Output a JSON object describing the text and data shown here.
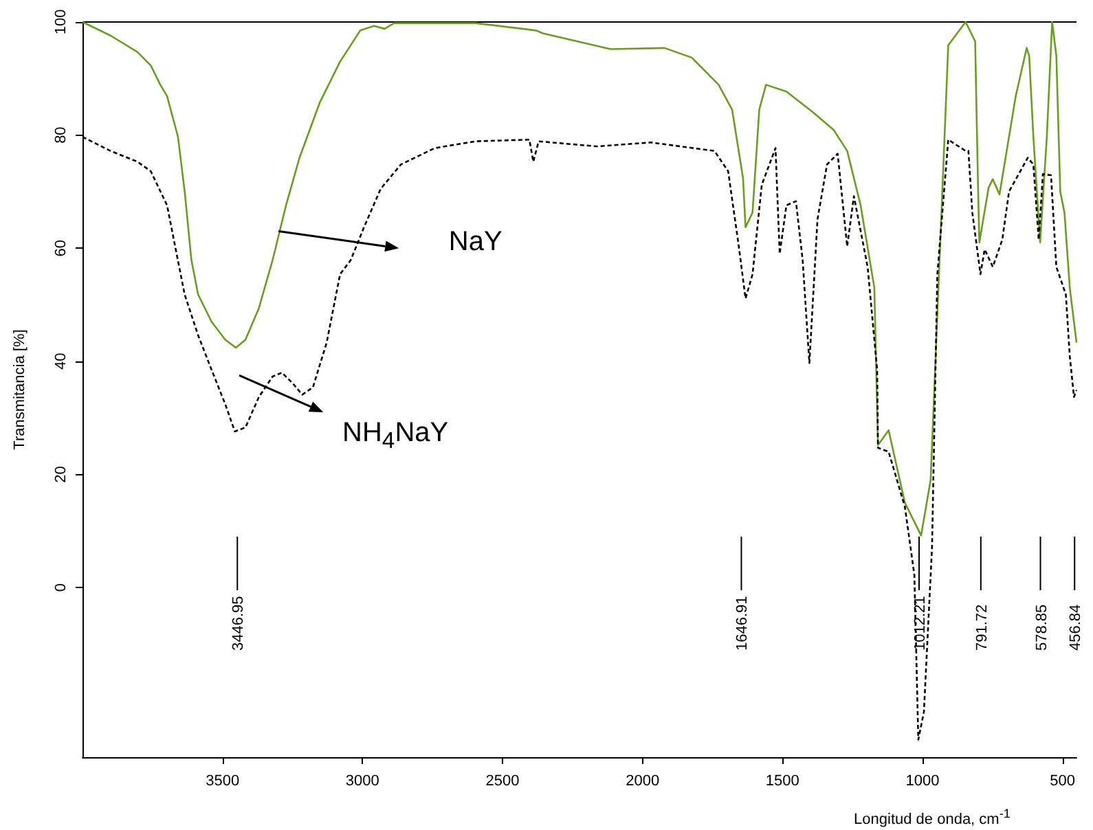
{
  "chart_data": {
    "type": "line",
    "xlabel": "Longitud de onda, cm$^{-1}$",
    "ylabel": "Transmitancia [%]",
    "xlim": [
      4000,
      450
    ],
    "xticks": [
      3500,
      3000,
      2500,
      2000,
      1500,
      1000,
      500
    ],
    "ylim": [
      -30,
      100
    ],
    "yticks": [
      0,
      20,
      40,
      60,
      80,
      100
    ],
    "grid": false,
    "marker": "none",
    "series": [
      {
        "color": "#6a9e1f",
        "line_style": "solid",
        "x": [
          4000,
          3900,
          3804,
          3756,
          3722,
          3698,
          3659,
          3635,
          3611,
          3587,
          3539,
          3490,
          3452,
          3418,
          3370,
          3321,
          3273,
          3225,
          3153,
          3080,
          3008,
          2959,
          2921,
          2887,
          2597,
          2380,
          2356,
          2114,
          1921,
          1824,
          1728,
          1680,
          1641,
          1632,
          1607,
          1583,
          1559,
          1486,
          1390,
          1317,
          1269,
          1221,
          1172,
          1159,
          1121,
          1063,
          1005,
          971,
          908,
          846,
          812,
          802,
          797,
          764,
          749,
          725,
          667,
          628,
          619,
          604,
          580,
          556,
          537,
          522,
          508,
          493,
          474,
          450
        ],
        "values": [
          100,
          97.6,
          94.7,
          92.3,
          88.9,
          86.9,
          79.7,
          70,
          57.9,
          51.8,
          47,
          43.8,
          42.4,
          43.8,
          49.4,
          57.9,
          67.6,
          76,
          85.7,
          93,
          98.5,
          99.3,
          98.8,
          99.8,
          99.8,
          98.5,
          98,
          95.2,
          95.4,
          93.7,
          88.9,
          84.5,
          72.4,
          63.7,
          66.3,
          84.5,
          88.9,
          87.7,
          84,
          80.9,
          77.2,
          67.6,
          53,
          25.2,
          27.8,
          15,
          9.2,
          19,
          95.9,
          100,
          96.6,
          71.7,
          61,
          70.7,
          72.2,
          69.5,
          86.9,
          95.4,
          94,
          79.7,
          61,
          79.7,
          100,
          94,
          70,
          66.3,
          53,
          43.3
        ]
      },
      {
        "color": "#000000",
        "line_style": "dashed",
        "x": [
          4000,
          3900,
          3804,
          3756,
          3698,
          3669,
          3635,
          3587,
          3539,
          3490,
          3456,
          3418,
          3370,
          3321,
          3288,
          3249,
          3215,
          3177,
          3128,
          3080,
          3042,
          2993,
          2935,
          2863,
          2742,
          2597,
          2404,
          2390,
          2371,
          2163,
          1970,
          1743,
          1694,
          1656,
          1632,
          1607,
          1574,
          1525,
          1510,
          1486,
          1452,
          1428,
          1404,
          1375,
          1341,
          1303,
          1269,
          1245,
          1196,
          1162,
          1159,
          1121,
          1063,
          1029,
          1015,
          995,
          966,
          947,
          908,
          846,
          836,
          822,
          793,
          778,
          749,
          715,
          691,
          624,
          604,
          585,
          570,
          541,
          522,
          488,
          474,
          459,
          450
        ],
        "values": [
          79.7,
          77.2,
          75.3,
          73.6,
          67.6,
          60.3,
          51.8,
          44.6,
          38.5,
          32.4,
          27.6,
          28.3,
          33.7,
          37.3,
          38,
          36.1,
          34.1,
          35.4,
          43.3,
          55.4,
          57.9,
          63.9,
          70.5,
          74.8,
          77.7,
          78.9,
          79.2,
          75.3,
          78.9,
          78,
          78.7,
          77.2,
          73.6,
          60.3,
          51.1,
          55.4,
          71.2,
          77.7,
          59,
          67.6,
          68.3,
          57.9,
          39.7,
          65.1,
          74.8,
          76.7,
          60.3,
          69.2,
          56.7,
          38.5,
          24.7,
          24,
          14.3,
          2.2,
          -26.9,
          -22,
          7,
          55.4,
          79.2,
          77.2,
          77.2,
          66.3,
          55.4,
          59.8,
          56.7,
          61.5,
          70,
          76,
          74.8,
          61.5,
          73.1,
          72.9,
          56.7,
          51.8,
          40.9,
          33.7,
          34.9
        ]
      }
    ],
    "annotations": [
      "NaY",
      "NH$_{4}$NaY"
    ],
    "ref_lines": [
      {
        "axis": "x",
        "value": 3446.95,
        "label": "3446.95"
      },
      {
        "axis": "x",
        "value": 1646.91,
        "label": "1646.91"
      },
      {
        "axis": "x",
        "value": 1012.21,
        "label": "1012.21"
      },
      {
        "axis": "x",
        "value": 791.72,
        "label": "791.72"
      },
      {
        "axis": "x",
        "value": 578.85,
        "label": "578.85"
      },
      {
        "axis": "x",
        "value": 456.84,
        "label": "456.84"
      }
    ]
  }
}
